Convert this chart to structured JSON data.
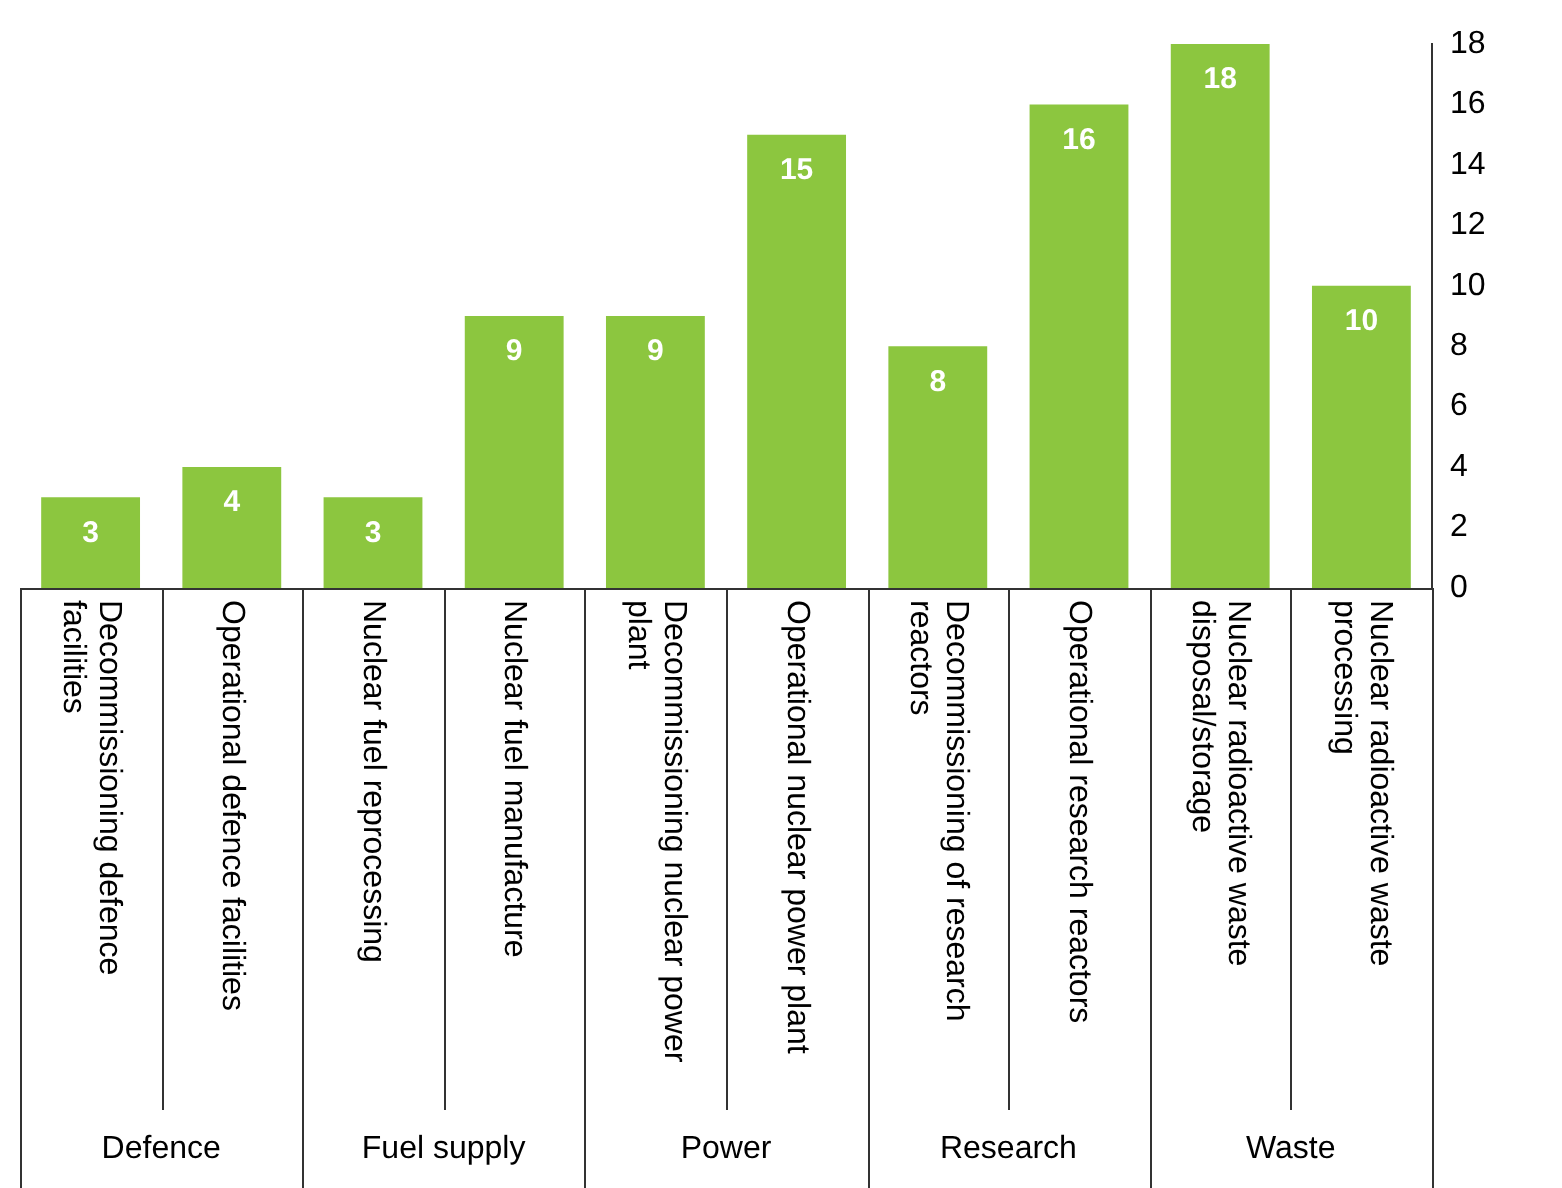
{
  "chart_data": {
    "type": "bar",
    "categories": [
      "Decommissioning defence facilities",
      "Operational defence facilities",
      "Nuclear fuel reprocessing",
      "Nuclear fuel manufacture",
      "Decommissioning nuclear power plant",
      "Operational nuclear power plant",
      "Decommissioning of research reactors",
      "Operational research reactors",
      "Nuclear radioactive waste disposal/storage",
      "Nuclear radioactive waste processing"
    ],
    "values": [
      3,
      4,
      3,
      9,
      9,
      15,
      8,
      16,
      18,
      10
    ],
    "color": "#8cc63f",
    "ylim": [
      0,
      18
    ],
    "yticks": [
      0,
      2,
      4,
      6,
      8,
      10,
      12,
      14,
      16,
      18
    ],
    "data_labels": true,
    "grid": false,
    "legend": false,
    "annotations": [
      "Defence",
      "Fuel supply",
      "Power",
      "Research",
      "Waste"
    ]
  }
}
